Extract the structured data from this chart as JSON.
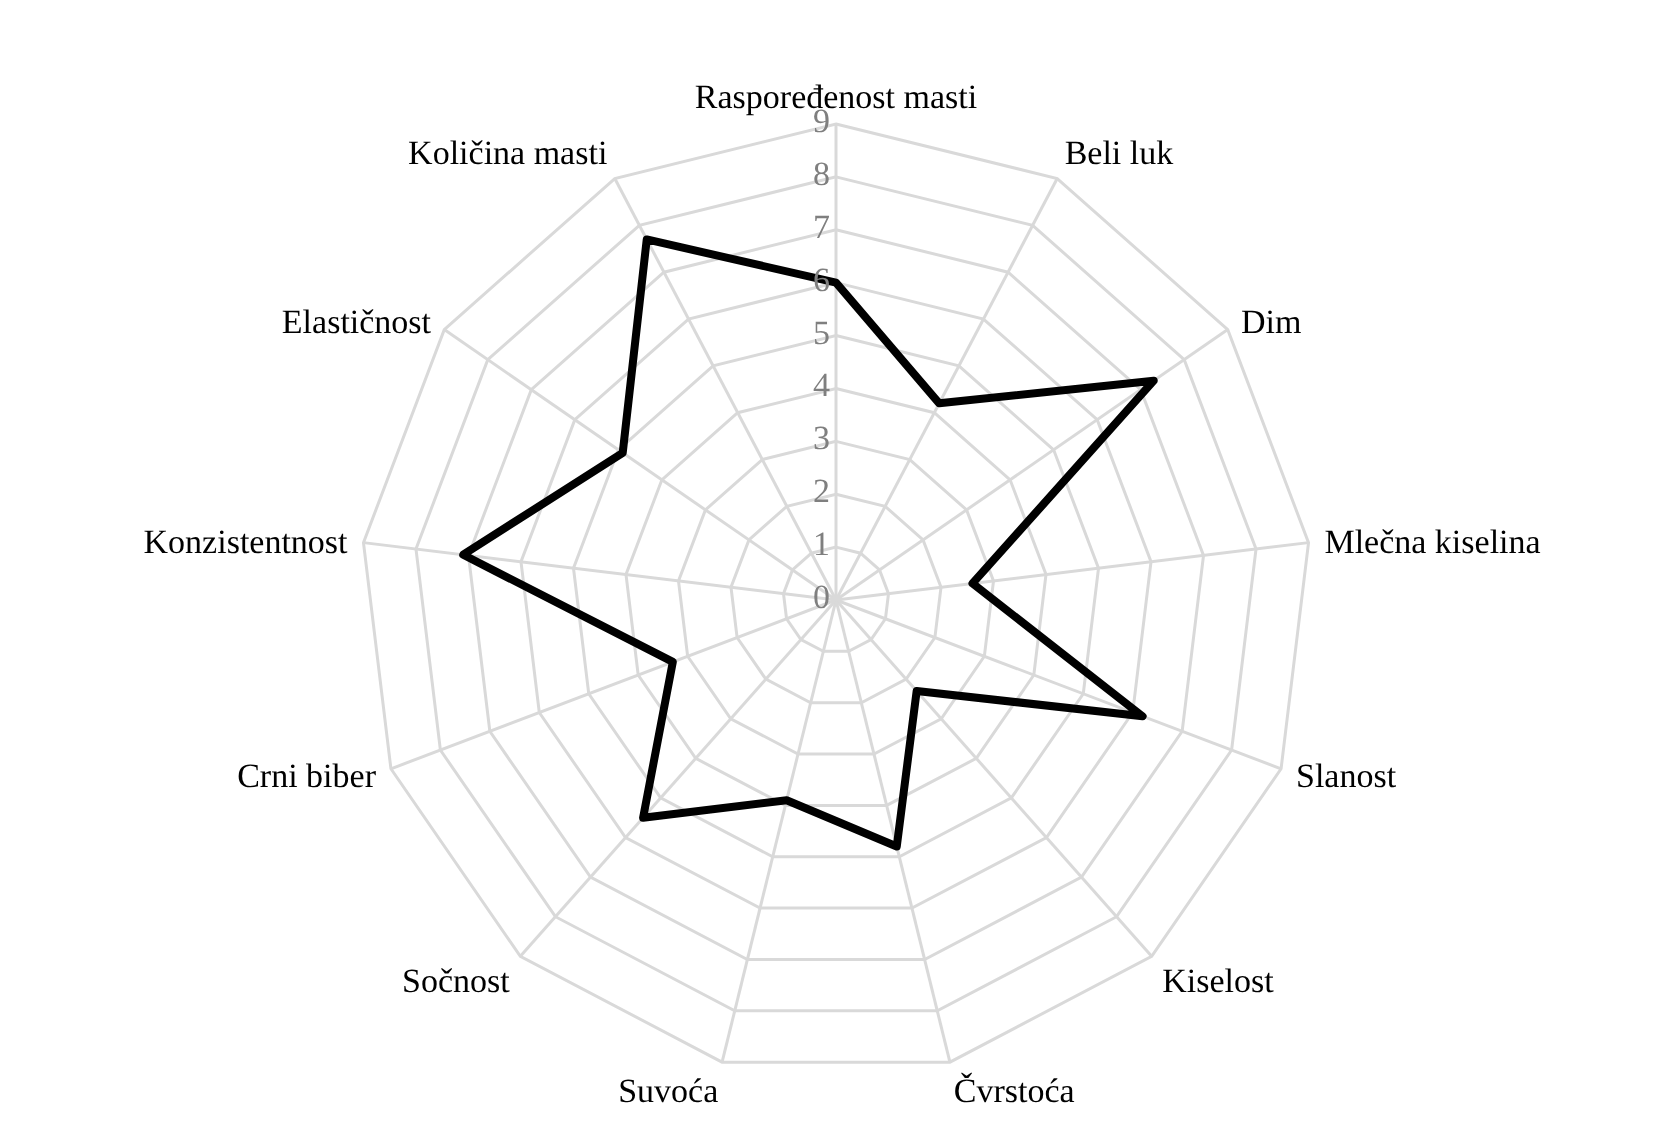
{
  "chart_data": {
    "type": "radar",
    "categories": [
      "Raspoređenost masti",
      "Beli luk",
      "Dim",
      "Mlečna kiselina",
      "Slanost",
      "Kiselost",
      "Čvrstoća",
      "Suvoća",
      "Sočnost",
      "Crni biber",
      "Konzistentnost",
      "Elastičnost",
      "Količina masti"
    ],
    "series": [
      {
        "color": "#000000",
        "values": [
          6,
          4.2,
          7.3,
          2.6,
          6.2,
          2.3,
          4.8,
          3.9,
          5.5,
          3.3,
          7.1,
          4.9,
          7.7
        ]
      }
    ],
    "ylim": [
      0,
      9
    ],
    "yticks": [
      0,
      1,
      2,
      3,
      4,
      5,
      6,
      7,
      8,
      9
    ],
    "grid": true
  }
}
